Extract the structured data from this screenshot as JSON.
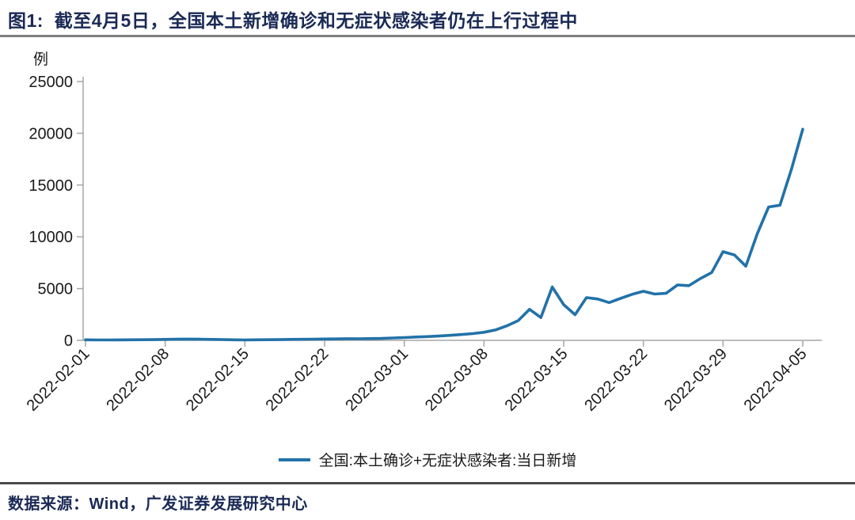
{
  "header": {
    "title": "图1:  截至4月5日，全国本土新增确诊和无症状感染者仍在上行过程中"
  },
  "footer": {
    "source": "数据来源：Wind，广发证券发展研究中心"
  },
  "legend": {
    "label": "全国:本土确诊+无症状感染者:当日新增"
  },
  "colors": {
    "line": "#2272a8",
    "axis": "#a6a6a6",
    "title_navy": "#1b2a55",
    "tick_text": "#1a1a1a",
    "rule_top": "#7f7f7f",
    "rule_bottom": "#4a4a4a"
  },
  "chart_data": {
    "type": "line",
    "title": "截至4月5日，全国本土新增确诊和无症状感染者仍在上行过程中",
    "xlabel": "",
    "ylabel": "例",
    "ylim": [
      0,
      25000
    ],
    "yticks": [
      0,
      5000,
      10000,
      15000,
      20000,
      25000
    ],
    "grid": false,
    "legend_position": "bottom",
    "xtick_labels": [
      "2022-02-01",
      "2022-02-08",
      "2022-02-15",
      "2022-02-22",
      "2022-03-01",
      "2022-03-08",
      "2022-03-15",
      "2022-03-22",
      "2022-03-29",
      "2022-04-05"
    ],
    "x": [
      "2022-02-01",
      "2022-02-02",
      "2022-02-03",
      "2022-02-04",
      "2022-02-05",
      "2022-02-06",
      "2022-02-07",
      "2022-02-08",
      "2022-02-09",
      "2022-02-10",
      "2022-02-11",
      "2022-02-12",
      "2022-02-13",
      "2022-02-14",
      "2022-02-15",
      "2022-02-16",
      "2022-02-17",
      "2022-02-18",
      "2022-02-19",
      "2022-02-20",
      "2022-02-21",
      "2022-02-22",
      "2022-02-23",
      "2022-02-24",
      "2022-02-25",
      "2022-02-26",
      "2022-02-27",
      "2022-02-28",
      "2022-03-01",
      "2022-03-02",
      "2022-03-03",
      "2022-03-04",
      "2022-03-05",
      "2022-03-06",
      "2022-03-07",
      "2022-03-08",
      "2022-03-09",
      "2022-03-10",
      "2022-03-11",
      "2022-03-12",
      "2022-03-13",
      "2022-03-14",
      "2022-03-15",
      "2022-03-16",
      "2022-03-17",
      "2022-03-18",
      "2022-03-19",
      "2022-03-20",
      "2022-03-21",
      "2022-03-22",
      "2022-03-23",
      "2022-03-24",
      "2022-03-25",
      "2022-03-26",
      "2022-03-27",
      "2022-03-28",
      "2022-03-29",
      "2022-03-30",
      "2022-03-31",
      "2022-04-01",
      "2022-04-02",
      "2022-04-03",
      "2022-04-04",
      "2022-04-05"
    ],
    "series": [
      {
        "name": "全国:本土确诊+无症状感染者:当日新增",
        "values": [
          55,
          40,
          35,
          45,
          50,
          60,
          65,
          90,
          105,
          120,
          110,
          95,
          80,
          55,
          40,
          50,
          60,
          70,
          90,
          100,
          115,
          130,
          140,
          160,
          150,
          170,
          185,
          230,
          270,
          320,
          360,
          410,
          480,
          560,
          650,
          780,
          1000,
          1400,
          1900,
          3000,
          2200,
          5150,
          3450,
          2480,
          4130,
          3990,
          3650,
          4050,
          4440,
          4740,
          4470,
          4540,
          5350,
          5280,
          5960,
          6550,
          8560,
          8250,
          7160,
          10280,
          12880,
          13050,
          16500,
          20400
        ]
      }
    ]
  }
}
